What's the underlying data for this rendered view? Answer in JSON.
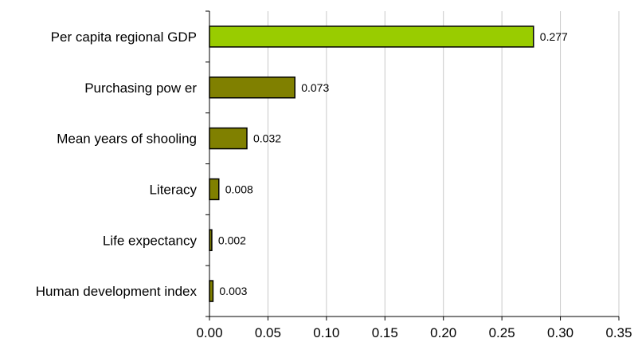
{
  "chart_data": {
    "type": "bar",
    "orientation": "horizontal",
    "title": "",
    "xlabel": "",
    "ylabel": "",
    "categories": [
      "Per capita regional GDP",
      "Purchasing pow er",
      "Mean years of shooling",
      "Literacy",
      "Life expectancy",
      "Human development index"
    ],
    "values": [
      0.277,
      0.073,
      0.032,
      0.008,
      0.002,
      0.003
    ],
    "value_labels": [
      "0.277",
      "0.073",
      "0.032",
      "0.008",
      "0.002",
      "0.003"
    ],
    "bar_colors": [
      "#99CC00",
      "#808000",
      "#808000",
      "#808000",
      "#808000",
      "#808000"
    ],
    "xlim": [
      0,
      0.35
    ],
    "xticks": [
      0,
      0.05,
      0.1,
      0.15,
      0.2,
      0.25,
      0.3,
      0.35
    ],
    "xtick_labels": [
      "0.00",
      "0.05",
      "0.10",
      "0.15",
      "0.20",
      "0.25",
      "0.30",
      "0.35"
    ],
    "grid": "vertical",
    "legend": "none"
  }
}
